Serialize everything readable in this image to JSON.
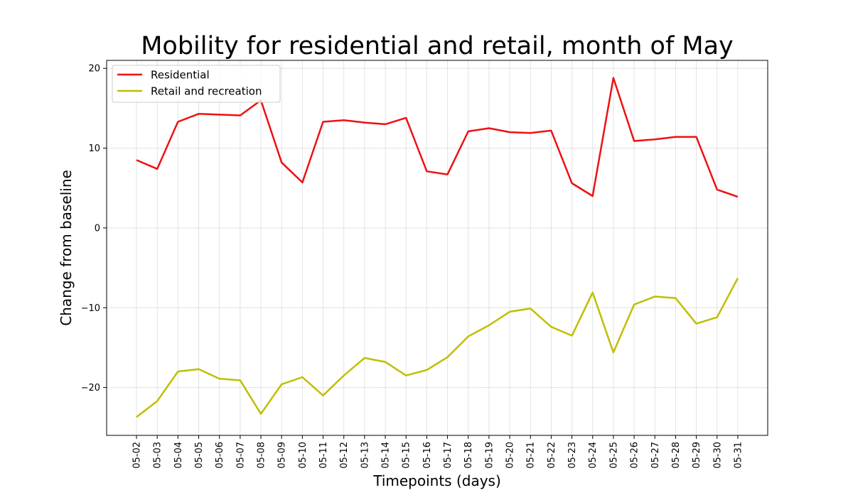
{
  "chart_data": {
    "type": "line",
    "title": "Mobility for residential and retail, month of May",
    "xlabel": "Timepoints (days)",
    "ylabel": "Change from baseline",
    "categories": [
      "05-02",
      "05-03",
      "05-04",
      "05-05",
      "05-06",
      "05-07",
      "05-08",
      "05-09",
      "05-10",
      "05-11",
      "05-12",
      "05-13",
      "05-14",
      "05-15",
      "05-16",
      "05-17",
      "05-18",
      "05-19",
      "05-20",
      "05-21",
      "05-22",
      "05-23",
      "05-24",
      "05-25",
      "05-26",
      "05-27",
      "05-28",
      "05-29",
      "05-30",
      "05-31"
    ],
    "ylim": [
      -26,
      21
    ],
    "yticks": [
      -20,
      -10,
      0,
      10,
      20
    ],
    "grid": true,
    "legend_position": "top-left",
    "series": [
      {
        "name": "Residential",
        "color": "#ee1111",
        "values": [
          8.5,
          7.4,
          13.3,
          14.3,
          14.2,
          14.1,
          16.0,
          8.2,
          5.7,
          13.3,
          13.5,
          13.2,
          13.0,
          13.8,
          7.1,
          6.7,
          12.1,
          12.5,
          12.0,
          11.9,
          12.2,
          5.6,
          4.0,
          18.8,
          10.9,
          11.1,
          11.4,
          11.4,
          4.8,
          3.9
        ]
      },
      {
        "name": "Retail and recreation",
        "color": "#bfbf00",
        "values": [
          -23.7,
          -21.7,
          -18.0,
          -17.7,
          -18.9,
          -19.1,
          -23.3,
          -19.6,
          -18.7,
          -21.0,
          -18.5,
          -16.3,
          -16.8,
          -18.5,
          -17.8,
          -16.2,
          -13.6,
          -12.2,
          -10.5,
          -10.1,
          -12.4,
          -13.5,
          -8.1,
          -15.6,
          -9.6,
          -8.6,
          -8.8,
          -12.0,
          -11.2,
          -6.3
        ]
      }
    ]
  }
}
